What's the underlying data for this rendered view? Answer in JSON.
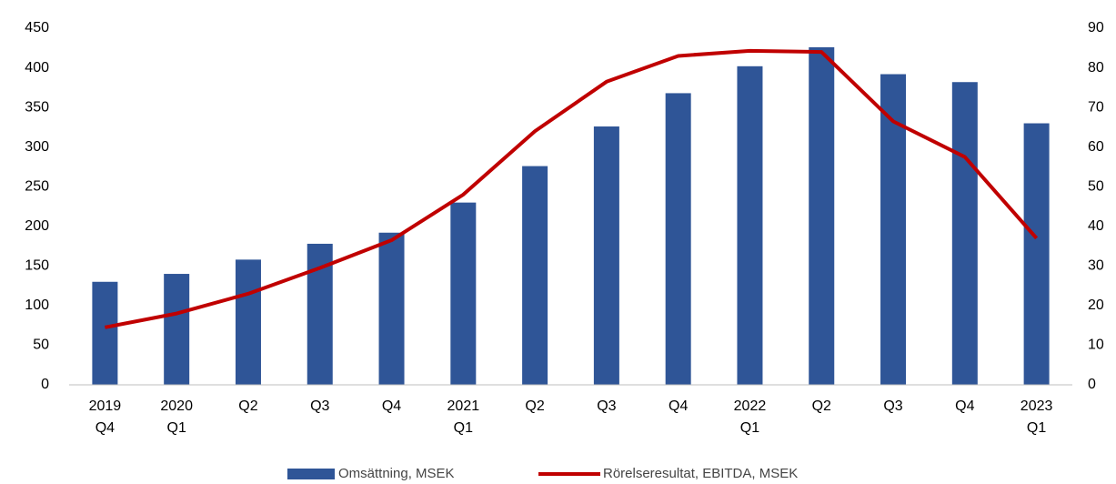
{
  "chart_data": {
    "type": "bar+line",
    "categories": [
      [
        "2019",
        "Q4"
      ],
      [
        "2020",
        "Q1"
      ],
      [
        "Q2"
      ],
      [
        "Q3"
      ],
      [
        "Q4"
      ],
      [
        "2021",
        "Q1"
      ],
      [
        "Q2"
      ],
      [
        "Q3"
      ],
      [
        "Q4"
      ],
      [
        "2022",
        "Q1"
      ],
      [
        "Q2"
      ],
      [
        "Q3"
      ],
      [
        "Q4"
      ],
      [
        "2023",
        "Q1"
      ]
    ],
    "series": [
      {
        "name": "Omsättning, MSEK",
        "color": "#2f5597",
        "type": "bar",
        "axis": "y",
        "values": [
          130,
          140,
          158,
          178,
          192,
          230,
          276,
          326,
          368,
          402,
          426,
          392,
          382,
          330
        ]
      },
      {
        "name": "Rörelseresultat, EBITDA, MSEK",
        "color": "#c00000",
        "type": "line",
        "axis": "y2",
        "values": [
          14.5,
          18,
          23,
          29.5,
          36.5,
          48,
          64,
          76.5,
          83,
          84.3,
          84,
          66.5,
          57.5,
          37
        ]
      }
    ],
    "ylim": [
      0,
      450
    ],
    "yticks": [
      0,
      50,
      100,
      150,
      200,
      250,
      300,
      350,
      400,
      450
    ],
    "y2lim": [
      0,
      90
    ],
    "y2ticks": [
      0,
      10,
      20,
      30,
      40,
      50,
      60,
      70,
      80,
      90
    ],
    "grid": false,
    "legend": "bottom"
  }
}
